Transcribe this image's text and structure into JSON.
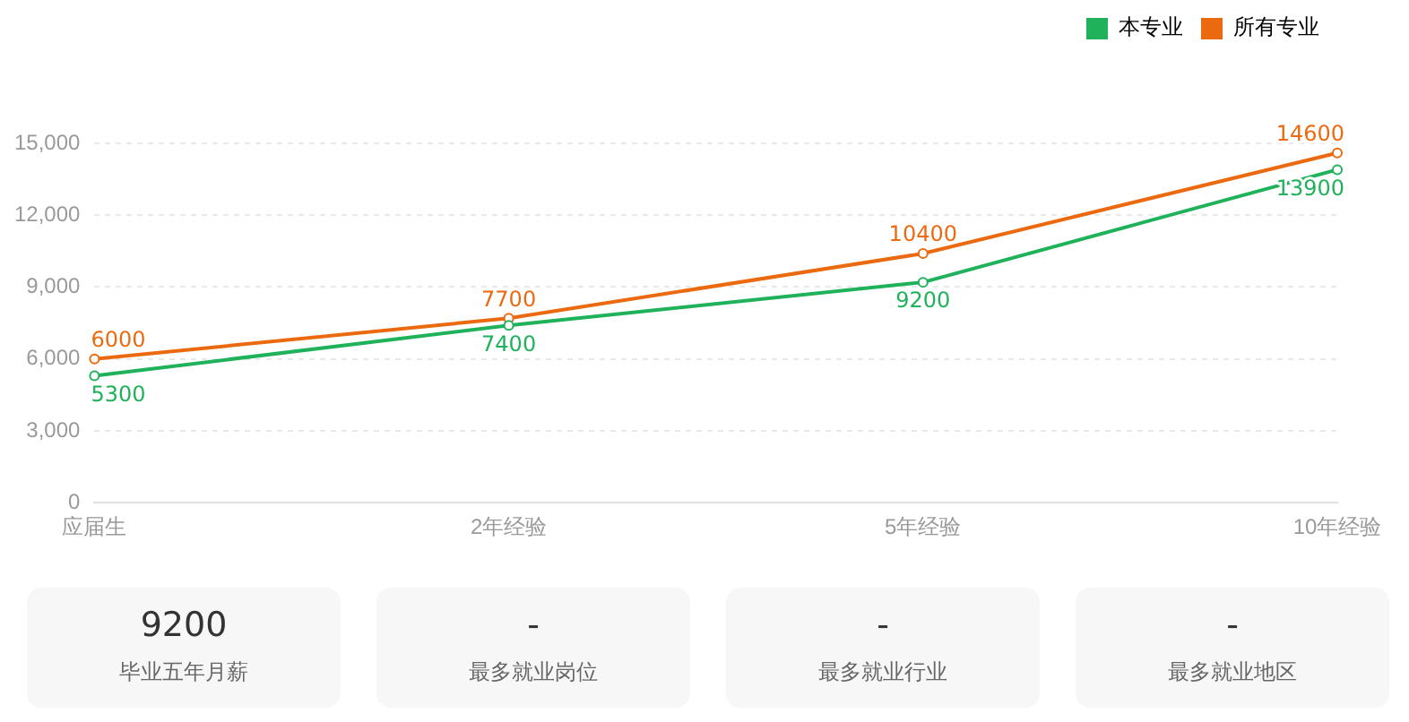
{
  "chart_data": [
    {
      "type": "line",
      "categories": [
        "应届生",
        "2年经验",
        "5年经验",
        "10年经验"
      ],
      "series": [
        {
          "name": "本专业",
          "color": "#1fb25a",
          "values": [
            5300,
            7400,
            9200,
            13900
          ]
        },
        {
          "name": "所有专业",
          "color": "#eb6a10",
          "values": [
            6000,
            7700,
            10400,
            14600
          ]
        }
      ],
      "ylim": [
        0,
        15000
      ],
      "yticks": [
        {
          "value": 0,
          "label": "0"
        },
        {
          "value": 3000,
          "label": "3,000"
        },
        {
          "value": 6000,
          "label": "6,000"
        },
        {
          "value": 9000,
          "label": "9,000"
        },
        {
          "value": 12000,
          "label": "12,000"
        },
        {
          "value": 15000,
          "label": "15,000"
        }
      ],
      "grid": "y",
      "legend": "top right",
      "marker": "circle",
      "line_style": "solid",
      "data_labels": true
    },
    {
      "type": "other",
      "annotations": [
        "9200",
        "毕业五年月薪",
        "-",
        "最多就业岗位",
        "-",
        "最多就业行业",
        "-",
        "最多就业地区"
      ]
    }
  ]
}
